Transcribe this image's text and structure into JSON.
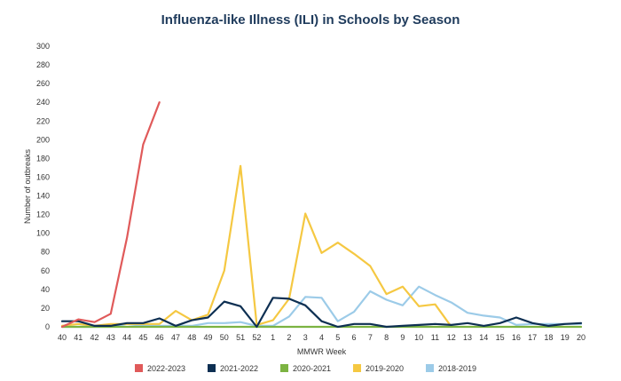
{
  "chart_data": {
    "type": "line",
    "title": "Influenza-like Illness (ILI) in Schools by Season",
    "xlabel": "MMWR Week",
    "ylabel": "Number of outbreaks",
    "ylim": [
      0,
      300
    ],
    "y_ticks": [
      0,
      20,
      40,
      60,
      80,
      100,
      120,
      140,
      160,
      180,
      200,
      220,
      240,
      260,
      280,
      300
    ],
    "categories": [
      "40",
      "41",
      "42",
      "43",
      "44",
      "45",
      "46",
      "47",
      "48",
      "49",
      "50",
      "51",
      "52",
      "1",
      "2",
      "3",
      "4",
      "5",
      "6",
      "7",
      "8",
      "9",
      "10",
      "11",
      "12",
      "13",
      "14",
      "15",
      "16",
      "17",
      "18",
      "19",
      "20"
    ],
    "series": [
      {
        "name": "2022-2023",
        "color": "#e05a5a",
        "values": [
          0,
          8,
          5,
          14,
          95,
          195,
          240,
          null,
          null,
          null,
          null,
          null,
          null,
          null,
          null,
          null,
          null,
          null,
          null,
          null,
          null,
          null,
          null,
          null,
          null,
          null,
          null,
          null,
          null,
          null,
          null,
          null,
          null
        ]
      },
      {
        "name": "2021-2022",
        "color": "#0d2f52",
        "values": [
          6,
          6,
          1,
          1,
          4,
          4,
          9,
          1,
          7,
          10,
          27,
          22,
          0,
          31,
          30,
          23,
          6,
          0,
          3,
          3,
          0,
          1,
          2,
          3,
          2,
          4,
          1,
          4,
          10,
          4,
          1,
          3,
          4
        ]
      },
      {
        "name": "2020-2021",
        "color": "#7cb342",
        "values": [
          0,
          0,
          0,
          0,
          0,
          0,
          0,
          0,
          0,
          0,
          0,
          0,
          0,
          0,
          0,
          0,
          0,
          0,
          0,
          0,
          0,
          0,
          0,
          0,
          0,
          0,
          0,
          0,
          0,
          0,
          0,
          0,
          0
        ]
      },
      {
        "name": "2019-2020",
        "color": "#f5c842",
        "values": [
          1,
          3,
          1,
          3,
          3,
          3,
          3,
          17,
          7,
          13,
          60,
          172,
          2,
          7,
          30,
          121,
          79,
          90,
          78,
          65,
          35,
          43,
          22,
          24,
          0,
          null,
          null,
          null,
          null,
          null,
          null,
          null,
          null
        ]
      },
      {
        "name": "2018-2019",
        "color": "#9ccbe8",
        "values": [
          0,
          0,
          0,
          0,
          3,
          1,
          1,
          1,
          1,
          4,
          4,
          5,
          1,
          1,
          11,
          32,
          31,
          6,
          16,
          38,
          29,
          23,
          43,
          34,
          26,
          15,
          12,
          10,
          2,
          3,
          3,
          3,
          3
        ]
      }
    ],
    "legend": [
      "2022-2023",
      "2021-2022",
      "2020-2021",
      "2019-2020",
      "2018-2019"
    ],
    "legend_position": "bottom"
  }
}
